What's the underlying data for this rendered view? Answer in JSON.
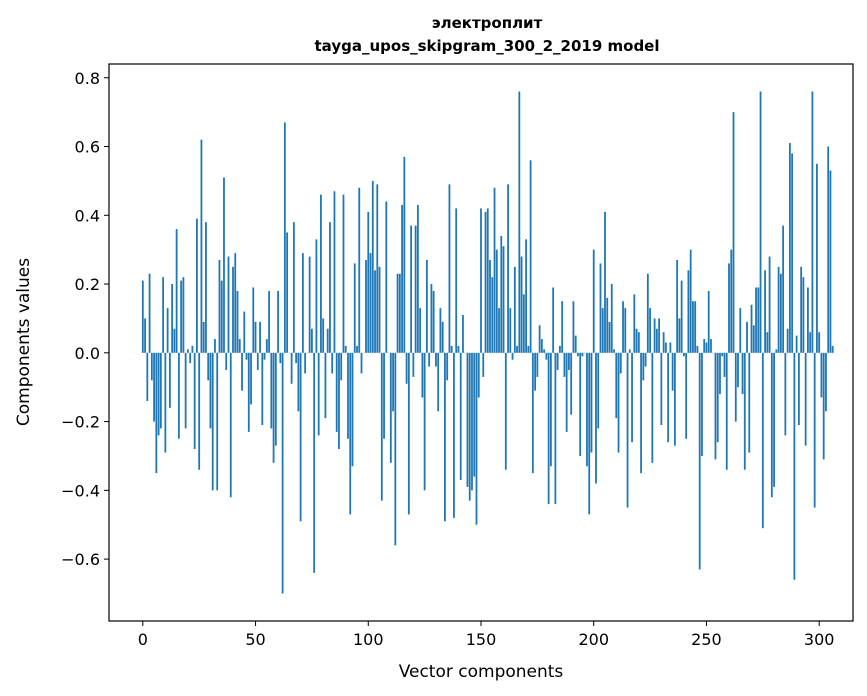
{
  "chart_data": {
    "type": "bar",
    "title": "электроплит",
    "subtitle": "tayga_upos_skipgram_300_2_2019 model",
    "xlabel": "Vector components",
    "ylabel": "Components values",
    "xlim": [
      -15,
      315
    ],
    "ylim": [
      -0.78,
      0.84
    ],
    "x_ticks": [
      0,
      50,
      100,
      150,
      200,
      250,
      300
    ],
    "x_tick_labels": [
      "0",
      "50",
      "100",
      "150",
      "200",
      "250",
      "300"
    ],
    "y_ticks": [
      -0.6,
      -0.4,
      -0.2,
      0.0,
      0.2,
      0.4,
      0.6,
      0.8
    ],
    "y_tick_labels": [
      "−0.6",
      "−0.4",
      "−0.2",
      "0.0",
      "0.2",
      "0.4",
      "0.6",
      "0.8"
    ],
    "bar_color": "#1f77b4",
    "grid": false,
    "series": [
      {
        "values": [
          0.21,
          0.1,
          -0.14,
          0.23,
          -0.08,
          -0.2,
          -0.35,
          -0.24,
          -0.22,
          0.22,
          -0.29,
          0.13,
          -0.16,
          0.2,
          0.07,
          0.36,
          -0.25,
          0.21,
          0.22,
          -0.22,
          0.01,
          -0.03,
          0.02,
          -0.28,
          0.39,
          -0.34,
          0.62,
          0.09,
          0.38,
          -0.08,
          -0.22,
          -0.4,
          0.04,
          -0.4,
          0.27,
          0.21,
          0.51,
          -0.05,
          0.28,
          -0.42,
          0.25,
          0.29,
          0.18,
          0.04,
          -0.11,
          0.12,
          -0.02,
          -0.23,
          -0.15,
          0.19,
          0.09,
          -0.05,
          0.09,
          -0.21,
          -0.02,
          0.04,
          0.18,
          -0.22,
          -0.32,
          -0.27,
          0.18,
          -0.03,
          -0.7,
          0.67,
          0.35,
          0.0,
          -0.09,
          0.38,
          -0.03,
          -0.17,
          -0.49,
          0.29,
          -0.06,
          0.0,
          0.28,
          0.07,
          -0.64,
          0.33,
          -0.24,
          0.46,
          0.1,
          -0.19,
          0.07,
          0.38,
          -0.06,
          0.47,
          -0.23,
          -0.28,
          -0.08,
          0.46,
          0.02,
          -0.25,
          -0.47,
          -0.33,
          0.26,
          0.02,
          0.48,
          -0.06,
          0.0,
          0.27,
          0.41,
          0.29,
          0.5,
          0.24,
          0.49,
          0.25,
          -0.43,
          -0.25,
          0.44,
          0.0,
          -0.32,
          -0.17,
          -0.56,
          0.23,
          0.23,
          0.43,
          0.57,
          -0.09,
          -0.47,
          0.37,
          -0.07,
          0.37,
          0.43,
          0.13,
          -0.13,
          -0.4,
          0.27,
          -0.04,
          0.2,
          0.18,
          -0.04,
          -0.17,
          0.13,
          0.09,
          -0.49,
          -0.08,
          0.49,
          0.02,
          -0.48,
          0.42,
          0.02,
          -0.37,
          0.11,
          0.0,
          -0.39,
          -0.43,
          -0.4,
          -0.36,
          -0.5,
          -0.13,
          0.42,
          -0.07,
          0.41,
          0.42,
          0.27,
          0.22,
          0.48,
          0.3,
          0.13,
          0.34,
          0.31,
          -0.34,
          0.49,
          0.13,
          -0.02,
          0.25,
          0.02,
          0.76,
          0.28,
          0.17,
          0.33,
          0.02,
          0.56,
          -0.35,
          -0.11,
          -0.07,
          0.08,
          0.04,
          0.01,
          -0.02,
          -0.44,
          -0.33,
          0.19,
          -0.44,
          -0.05,
          0.02,
          0.15,
          -0.07,
          -0.23,
          -0.05,
          -0.18,
          0.15,
          0.05,
          -0.01,
          -0.3,
          -0.01,
          0.0,
          -0.33,
          -0.47,
          -0.29,
          0.3,
          -0.38,
          -0.22,
          0.26,
          0.13,
          0.41,
          0.16,
          0.09,
          0.2,
          0.01,
          -0.19,
          -0.29,
          -0.06,
          0.15,
          0.13,
          -0.45,
          0.01,
          -0.26,
          0.17,
          0.07,
          0.06,
          -0.35,
          -0.08,
          -0.04,
          0.23,
          0.13,
          -0.32,
          0.1,
          0.07,
          0.1,
          -0.21,
          0.06,
          0.03,
          -0.26,
          0.03,
          -0.11,
          -0.27,
          0.27,
          0.1,
          0.21,
          -0.01,
          -0.25,
          0.24,
          0.3,
          0.15,
          0.15,
          0.02,
          -0.63,
          -0.3,
          0.04,
          0.03,
          0.18,
          0.04,
          0.0,
          -0.31,
          -0.26,
          -0.12,
          -0.01,
          -0.07,
          -0.34,
          0.26,
          0.3,
          0.7,
          -0.2,
          -0.1,
          0.13,
          -0.12,
          -0.34,
          0.09,
          -0.29,
          0.14,
          0.08,
          0.19,
          0.19,
          0.76,
          -0.51,
          0.24,
          0.06,
          0.28,
          -0.42,
          -0.39,
          0.01,
          0.25,
          0.23,
          0.37,
          -0.24,
          0.07,
          0.61,
          0.58,
          -0.66,
          0.05,
          -0.21,
          0.25,
          0.22,
          -0.27,
          0.19,
          0.06,
          0.76,
          -0.45,
          0.55,
          0.06,
          -0.13,
          -0.31,
          -0.17,
          0.6,
          0.53,
          0.02
        ]
      }
    ]
  }
}
